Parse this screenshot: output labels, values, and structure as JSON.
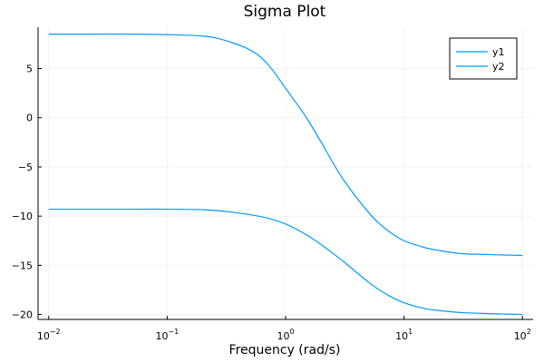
{
  "chart_data": {
    "type": "line",
    "title": "Sigma Plot",
    "xlabel": "Frequency (rad/s)",
    "ylabel": "",
    "xscale": "log",
    "xlim": [
      0.01,
      100
    ],
    "ylim": [
      -20.5,
      9.2
    ],
    "xticks": [
      0.01,
      0.1,
      1,
      10,
      100
    ],
    "xtick_labels": [
      {
        "base": "10",
        "exp": "−2"
      },
      {
        "base": "10",
        "exp": "−1"
      },
      {
        "base": "10",
        "exp": "0"
      },
      {
        "base": "10",
        "exp": "1"
      },
      {
        "base": "10",
        "exp": "2"
      }
    ],
    "yticks": [
      5,
      0,
      -5,
      -10,
      -15,
      -20
    ],
    "ytick_labels": [
      "5",
      "0",
      "−5",
      "−10",
      "−15",
      "−20"
    ],
    "grid": true,
    "legend": "top-right",
    "line_color": "#009af9",
    "series": [
      {
        "name": "y1",
        "x": [
          0.01,
          0.02,
          0.05,
          0.1,
          0.2,
          0.3,
          0.5,
          0.7,
          1,
          1.5,
          2,
          3,
          5,
          7,
          10,
          15,
          20,
          30,
          50,
          70,
          100
        ],
        "y": [
          8.5,
          8.5,
          8.5,
          8.45,
          8.3,
          7.9,
          6.9,
          5.5,
          3.0,
          0.0,
          -2.5,
          -6.1,
          -9.6,
          -11.3,
          -12.5,
          -13.2,
          -13.5,
          -13.8,
          -13.9,
          -13.95,
          -14.0
        ]
      },
      {
        "name": "y2",
        "x": [
          0.01,
          0.02,
          0.05,
          0.1,
          0.2,
          0.3,
          0.5,
          0.7,
          1,
          1.5,
          2,
          3,
          5,
          7,
          10,
          15,
          20,
          30,
          50,
          70,
          100
        ],
        "y": [
          -9.3,
          -9.3,
          -9.3,
          -9.3,
          -9.35,
          -9.5,
          -9.85,
          -10.2,
          -10.8,
          -11.9,
          -12.9,
          -14.5,
          -16.7,
          -17.9,
          -18.8,
          -19.4,
          -19.6,
          -19.8,
          -19.9,
          -19.95,
          -20.0
        ]
      }
    ]
  }
}
